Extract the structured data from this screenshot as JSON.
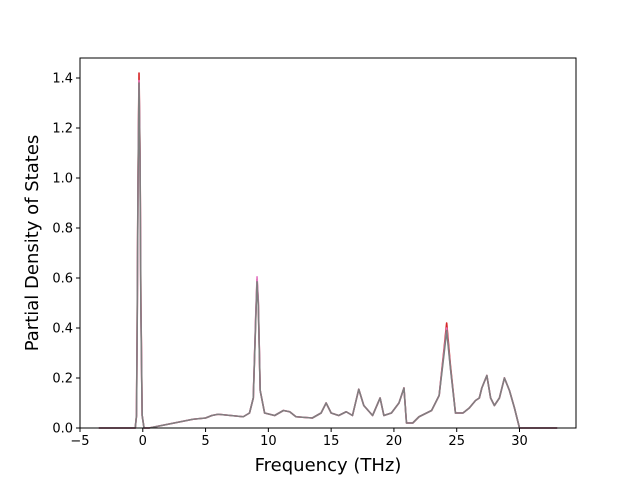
{
  "chart_data": {
    "type": "line",
    "xlabel": "Frequency (THz)",
    "ylabel": "Partial Density of States",
    "xlim": [
      -5,
      34.5
    ],
    "ylim": [
      0,
      1.48
    ],
    "x_ticks": [
      -5,
      0,
      5,
      10,
      15,
      20,
      25,
      30
    ],
    "y_ticks": [
      0.0,
      0.2,
      0.4,
      0.6,
      0.8,
      1.0,
      1.2,
      1.4
    ],
    "x_tick_labels": [
      "−5",
      "0",
      "5",
      "10",
      "15",
      "20",
      "25",
      "30"
    ],
    "y_tick_labels": [
      "0.0",
      "0.2",
      "0.4",
      "0.6",
      "0.8",
      "1.0",
      "1.2",
      "1.4"
    ],
    "grid": false,
    "series": [
      {
        "color": "#d62728",
        "points": [
          [
            -3.5,
            0
          ],
          [
            -0.6,
            0
          ],
          [
            -0.5,
            0.05
          ],
          [
            -0.45,
            0.4
          ],
          [
            -0.38,
            1.0
          ],
          [
            -0.3,
            1.42
          ],
          [
            -0.22,
            1.1
          ],
          [
            -0.15,
            0.5
          ],
          [
            -0.05,
            0.05
          ],
          [
            0.1,
            0.0
          ],
          [
            0.5,
            0.0
          ],
          [
            1.0,
            0.005
          ],
          [
            2,
            0.015
          ],
          [
            3,
            0.025
          ],
          [
            4,
            0.035
          ],
          [
            5,
            0.04
          ],
          [
            5.5,
            0.05
          ],
          [
            6,
            0.055
          ],
          [
            7,
            0.05
          ],
          [
            8,
            0.045
          ],
          [
            8.5,
            0.06
          ],
          [
            8.8,
            0.12
          ],
          [
            9.0,
            0.45
          ],
          [
            9.1,
            0.595
          ],
          [
            9.2,
            0.5
          ],
          [
            9.35,
            0.15
          ],
          [
            9.7,
            0.06
          ],
          [
            10.5,
            0.05
          ],
          [
            11.2,
            0.07
          ],
          [
            11.7,
            0.065
          ],
          [
            12.2,
            0.045
          ],
          [
            13.5,
            0.04
          ],
          [
            14.2,
            0.06
          ],
          [
            14.6,
            0.1
          ],
          [
            15.0,
            0.06
          ],
          [
            15.6,
            0.05
          ],
          [
            16.2,
            0.065
          ],
          [
            16.7,
            0.05
          ],
          [
            17.2,
            0.155
          ],
          [
            17.6,
            0.09
          ],
          [
            18.3,
            0.05
          ],
          [
            18.9,
            0.12
          ],
          [
            19.2,
            0.05
          ],
          [
            19.8,
            0.06
          ],
          [
            20.4,
            0.1
          ],
          [
            20.8,
            0.16
          ],
          [
            21.0,
            0.02
          ],
          [
            21.5,
            0.02
          ],
          [
            22.0,
            0.045
          ],
          [
            23.0,
            0.07
          ],
          [
            23.6,
            0.13
          ],
          [
            24.0,
            0.32
          ],
          [
            24.2,
            0.42
          ],
          [
            24.5,
            0.25
          ],
          [
            24.9,
            0.06
          ],
          [
            25.5,
            0.06
          ],
          [
            26.0,
            0.08
          ],
          [
            26.5,
            0.11
          ],
          [
            26.8,
            0.12
          ],
          [
            27.0,
            0.16
          ],
          [
            27.4,
            0.21
          ],
          [
            27.7,
            0.12
          ],
          [
            28.0,
            0.09
          ],
          [
            28.4,
            0.12
          ],
          [
            28.8,
            0.2
          ],
          [
            29.2,
            0.15
          ],
          [
            29.6,
            0.08
          ],
          [
            30.0,
            0.0
          ],
          [
            33.0,
            0.0
          ]
        ]
      },
      {
        "color": "#e377c2",
        "points": [
          [
            -3.5,
            0
          ],
          [
            -0.6,
            0
          ],
          [
            -0.5,
            0.05
          ],
          [
            -0.45,
            0.38
          ],
          [
            -0.38,
            0.98
          ],
          [
            -0.3,
            1.39
          ],
          [
            -0.22,
            1.08
          ],
          [
            -0.15,
            0.48
          ],
          [
            -0.05,
            0.05
          ],
          [
            0.1,
            0.0
          ],
          [
            0.5,
            0.0
          ],
          [
            1.0,
            0.005
          ],
          [
            2,
            0.015
          ],
          [
            3,
            0.025
          ],
          [
            4,
            0.035
          ],
          [
            5,
            0.04
          ],
          [
            5.5,
            0.05
          ],
          [
            6,
            0.055
          ],
          [
            7,
            0.05
          ],
          [
            8,
            0.045
          ],
          [
            8.5,
            0.06
          ],
          [
            8.8,
            0.12
          ],
          [
            9.0,
            0.46
          ],
          [
            9.1,
            0.605
          ],
          [
            9.2,
            0.51
          ],
          [
            9.35,
            0.15
          ],
          [
            9.7,
            0.06
          ],
          [
            10.5,
            0.05
          ],
          [
            11.2,
            0.07
          ],
          [
            11.7,
            0.065
          ],
          [
            12.2,
            0.045
          ],
          [
            13.5,
            0.04
          ],
          [
            14.2,
            0.06
          ],
          [
            14.6,
            0.1
          ],
          [
            15.0,
            0.06
          ],
          [
            15.6,
            0.05
          ],
          [
            16.2,
            0.065
          ],
          [
            16.7,
            0.05
          ],
          [
            17.2,
            0.155
          ],
          [
            17.6,
            0.09
          ],
          [
            18.3,
            0.05
          ],
          [
            18.9,
            0.12
          ],
          [
            19.2,
            0.05
          ],
          [
            19.8,
            0.06
          ],
          [
            20.4,
            0.1
          ],
          [
            20.8,
            0.16
          ],
          [
            21.0,
            0.02
          ],
          [
            21.5,
            0.02
          ],
          [
            22.0,
            0.045
          ],
          [
            23.0,
            0.07
          ],
          [
            23.6,
            0.13
          ],
          [
            24.0,
            0.31
          ],
          [
            24.2,
            0.4
          ],
          [
            24.5,
            0.24
          ],
          [
            24.9,
            0.06
          ],
          [
            25.5,
            0.06
          ],
          [
            26.0,
            0.08
          ],
          [
            26.5,
            0.11
          ],
          [
            26.8,
            0.12
          ],
          [
            27.0,
            0.16
          ],
          [
            27.4,
            0.21
          ],
          [
            27.7,
            0.12
          ],
          [
            28.0,
            0.09
          ],
          [
            28.4,
            0.12
          ],
          [
            28.8,
            0.2
          ],
          [
            29.2,
            0.15
          ],
          [
            29.6,
            0.08
          ],
          [
            30.0,
            0.0
          ],
          [
            33.0,
            0.0
          ]
        ]
      },
      {
        "color": "#7f7f7f",
        "points": [
          [
            -3.5,
            0
          ],
          [
            -0.6,
            0
          ],
          [
            -0.5,
            0.05
          ],
          [
            -0.45,
            0.37
          ],
          [
            -0.38,
            0.97
          ],
          [
            -0.3,
            1.38
          ],
          [
            -0.22,
            1.07
          ],
          [
            -0.15,
            0.47
          ],
          [
            -0.05,
            0.05
          ],
          [
            0.1,
            0.0
          ],
          [
            0.5,
            0.0
          ],
          [
            1.0,
            0.005
          ],
          [
            2,
            0.015
          ],
          [
            3,
            0.025
          ],
          [
            4,
            0.035
          ],
          [
            5,
            0.04
          ],
          [
            5.5,
            0.05
          ],
          [
            6,
            0.055
          ],
          [
            7,
            0.05
          ],
          [
            8,
            0.045
          ],
          [
            8.5,
            0.06
          ],
          [
            8.8,
            0.12
          ],
          [
            9.0,
            0.44
          ],
          [
            9.1,
            0.585
          ],
          [
            9.2,
            0.49
          ],
          [
            9.35,
            0.15
          ],
          [
            9.7,
            0.06
          ],
          [
            10.5,
            0.05
          ],
          [
            11.2,
            0.07
          ],
          [
            11.7,
            0.065
          ],
          [
            12.2,
            0.045
          ],
          [
            13.5,
            0.04
          ],
          [
            14.2,
            0.06
          ],
          [
            14.6,
            0.1
          ],
          [
            15.0,
            0.06
          ],
          [
            15.6,
            0.05
          ],
          [
            16.2,
            0.065
          ],
          [
            16.7,
            0.05
          ],
          [
            17.2,
            0.155
          ],
          [
            17.6,
            0.09
          ],
          [
            18.3,
            0.05
          ],
          [
            18.9,
            0.12
          ],
          [
            19.2,
            0.05
          ],
          [
            19.8,
            0.06
          ],
          [
            20.4,
            0.1
          ],
          [
            20.8,
            0.16
          ],
          [
            21.0,
            0.02
          ],
          [
            21.5,
            0.02
          ],
          [
            22.0,
            0.045
          ],
          [
            23.0,
            0.07
          ],
          [
            23.6,
            0.13
          ],
          [
            24.0,
            0.3
          ],
          [
            24.2,
            0.39
          ],
          [
            24.5,
            0.24
          ],
          [
            24.9,
            0.06
          ],
          [
            25.5,
            0.06
          ],
          [
            26.0,
            0.08
          ],
          [
            26.5,
            0.11
          ],
          [
            26.8,
            0.12
          ],
          [
            27.0,
            0.16
          ],
          [
            27.4,
            0.21
          ],
          [
            27.7,
            0.12
          ],
          [
            28.0,
            0.09
          ],
          [
            28.4,
            0.12
          ],
          [
            28.8,
            0.2
          ],
          [
            29.2,
            0.15
          ],
          [
            29.6,
            0.08
          ],
          [
            30.0,
            0.0
          ],
          [
            33.0,
            0.0
          ]
        ]
      }
    ]
  }
}
